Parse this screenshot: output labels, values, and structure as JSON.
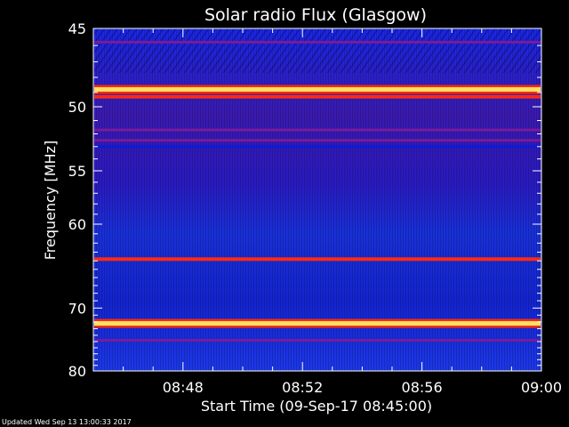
{
  "chart_data": {
    "type": "heatmap",
    "title": "Solar radio Flux (Glasgow)",
    "ylabel": "Frequency [MHz]",
    "xlabel": "Start Time (09-Sep-17 08:45:00)",
    "x_ticks": [
      "08:48",
      "08:52",
      "08:56",
      "09:00"
    ],
    "x_tick_minutes": [
      3,
      7,
      11,
      15
    ],
    "xlim_minutes": [
      0,
      15
    ],
    "y_ticks": [
      45,
      50,
      55,
      60,
      70,
      80
    ],
    "ylim": [
      45,
      80
    ],
    "y_scale": "reciprocal",
    "bands": [
      {
        "mhz": 45.8,
        "intensity": "medium"
      },
      {
        "mhz": 48.8,
        "intensity": "very-high"
      },
      {
        "mhz": 49.3,
        "intensity": "high"
      },
      {
        "mhz": 51.7,
        "intensity": "medium"
      },
      {
        "mhz": 52.5,
        "intensity": "medium"
      },
      {
        "mhz": 53.0,
        "intensity": "low"
      },
      {
        "mhz": 63.8,
        "intensity": "high"
      },
      {
        "mhz": 72.2,
        "intensity": "very-high"
      },
      {
        "mhz": 74.8,
        "intensity": "medium"
      }
    ],
    "colors": {
      "background": "#000000",
      "low": "#0a1cd8",
      "medium": "#7a1a9a",
      "high": "#ff2a10",
      "very-high": "#ffe060"
    }
  },
  "footer": {
    "updated": "Updated Wed Sep 13 13:00:33 2017"
  }
}
